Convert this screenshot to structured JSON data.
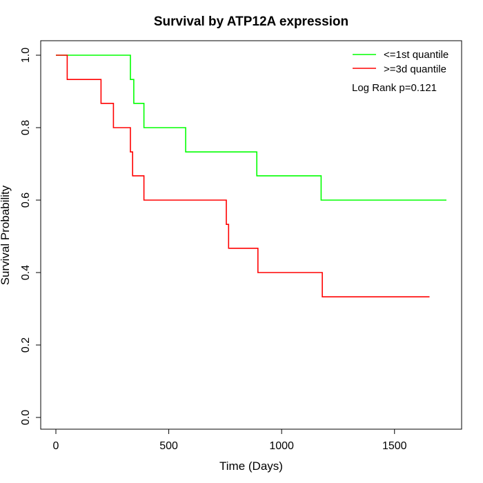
{
  "chart_data": {
    "type": "line",
    "title": "Survival by ATP12A expression",
    "xlabel": "Time (Days)",
    "ylabel": "Survival Probability",
    "xlim": [
      0,
      1750
    ],
    "ylim": [
      0,
      1
    ],
    "xticks": [
      0,
      500,
      1000,
      1500
    ],
    "xtick_labels": [
      "0",
      "500",
      "1000",
      "1500"
    ],
    "yticks": [
      0,
      0.2,
      0.4,
      0.6,
      0.8,
      1.0
    ],
    "ytick_labels": [
      "0.0",
      "0.2",
      "0.4",
      "0.6",
      "0.8",
      "1.0"
    ],
    "grid": false,
    "legend_position": "top-right",
    "annotation": "Log Rank p=0.121",
    "series": [
      {
        "name": "<=1st quantile",
        "color": "#00ff00",
        "step": true,
        "points": [
          [
            0,
            1.0
          ],
          [
            330,
            1.0
          ],
          [
            330,
            0.933
          ],
          [
            345,
            0.933
          ],
          [
            345,
            0.867
          ],
          [
            390,
            0.867
          ],
          [
            390,
            0.8
          ],
          [
            575,
            0.8
          ],
          [
            575,
            0.733
          ],
          [
            890,
            0.733
          ],
          [
            890,
            0.667
          ],
          [
            1175,
            0.667
          ],
          [
            1175,
            0.6
          ],
          [
            1730,
            0.6
          ]
        ]
      },
      {
        "name": ">=3d quantile",
        "color": "#ff0000",
        "step": true,
        "points": [
          [
            0,
            1.0
          ],
          [
            50,
            1.0
          ],
          [
            50,
            0.933
          ],
          [
            200,
            0.933
          ],
          [
            200,
            0.867
          ],
          [
            255,
            0.867
          ],
          [
            255,
            0.8
          ],
          [
            330,
            0.8
          ],
          [
            330,
            0.733
          ],
          [
            340,
            0.733
          ],
          [
            340,
            0.667
          ],
          [
            390,
            0.667
          ],
          [
            390,
            0.6
          ],
          [
            755,
            0.6
          ],
          [
            755,
            0.533
          ],
          [
            765,
            0.533
          ],
          [
            765,
            0.467
          ],
          [
            895,
            0.467
          ],
          [
            895,
            0.4
          ],
          [
            1180,
            0.4
          ],
          [
            1180,
            0.333
          ],
          [
            1655,
            0.333
          ]
        ]
      }
    ]
  }
}
